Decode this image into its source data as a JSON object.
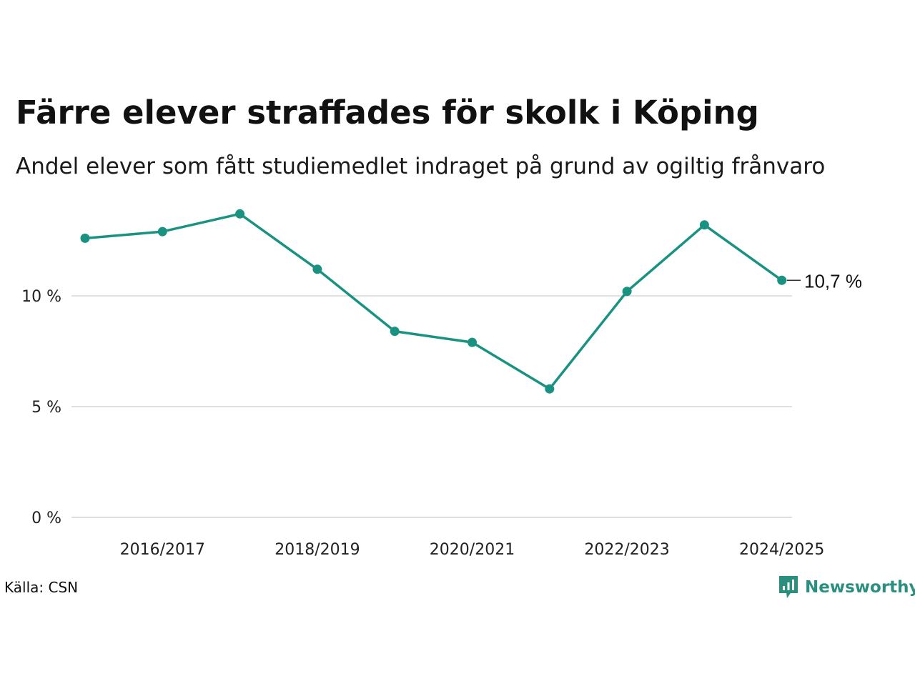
{
  "title": "Färre elever straffades för skolk i Köping",
  "subtitle": "Andel elever som fått studiemedlet indraget på grund av ogiltig frånvaro",
  "source": "Källa: CSN",
  "brand": {
    "name": "Newsworthy",
    "icon": "newsworthy-logo-icon",
    "color": "#2b8f7f"
  },
  "chart_data": {
    "type": "line",
    "x": [
      "2015/2016",
      "2016/2017",
      "2017/2018",
      "2018/2019",
      "2019/2020",
      "2020/2021",
      "2021/2022",
      "2022/2023",
      "2023/2024",
      "2024/2025"
    ],
    "x_tick_labels": [
      "2016/2017",
      "2018/2019",
      "2020/2021",
      "2022/2023",
      "2024/2025"
    ],
    "series": [
      {
        "values": [
          12.6,
          12.9,
          13.7,
          11.2,
          8.4,
          7.9,
          5.8,
          10.2,
          13.2,
          10.7
        ],
        "color": "#1a9282"
      }
    ],
    "y_ticks": [
      {
        "value": 0,
        "label": "0 %"
      },
      {
        "value": 5,
        "label": "5 %"
      },
      {
        "value": 10,
        "label": "10 %"
      }
    ],
    "ylim": [
      0,
      14
    ],
    "grid": "horizontal",
    "end_label": "10,7 %",
    "gridline_color": "#e0e0e0"
  }
}
